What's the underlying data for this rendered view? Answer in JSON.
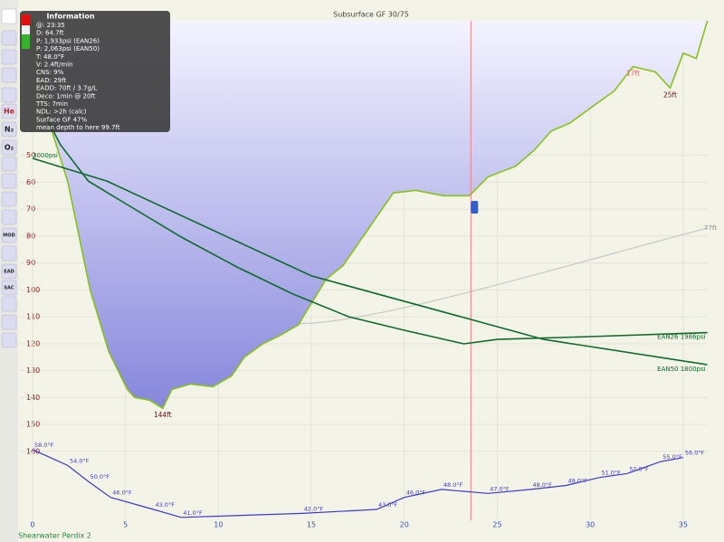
{
  "chart_data": {
    "type": "line",
    "title": "Subsurface GF 30/75",
    "xlim": [
      -0.68,
      36.32
    ],
    "ylim": [
      0,
      189
    ],
    "xticks": [
      0,
      5,
      10,
      15,
      20,
      25,
      30,
      35
    ],
    "yticks": [
      50,
      60,
      70,
      80,
      90,
      100,
      110,
      120,
      130,
      140,
      150,
      160
    ],
    "grid": true,
    "cursor_time": 23.58,
    "profile": {
      "color": "#86c21a",
      "x": [
        0,
        0.5,
        1,
        1.9,
        3.1,
        4.1,
        5.1,
        5.5,
        6.3,
        7,
        7.5,
        8.5,
        9.7,
        10.7,
        11.4,
        12.4,
        13.3,
        14.3,
        15,
        15.8,
        16.7,
        17.7,
        18.7,
        19.4,
        20.6,
        22.1,
        23.5,
        24.5,
        26,
        27,
        27.9,
        28.9,
        29.9,
        31.3,
        32.3,
        33.5,
        34.3,
        35,
        35.7,
        36.3
      ],
      "values": [
        0,
        20,
        40,
        60,
        100,
        123,
        137,
        140,
        141,
        144,
        137,
        135,
        136,
        132,
        125,
        120,
        117,
        113,
        105,
        96,
        91,
        81,
        71,
        64,
        63,
        65,
        65,
        58,
        54,
        48,
        41,
        38,
        33,
        26,
        17,
        19,
        25,
        12,
        14,
        0
      ]
    },
    "annotations": [
      {
        "text": "144ft",
        "x": 7,
        "y": 144,
        "color": "#6b1010"
      },
      {
        "text": "17ft",
        "x": 32.3,
        "y": 17,
        "color": "#e06060"
      },
      {
        "text": "25ft",
        "x": 34.3,
        "y": 25,
        "color": "#6b1010"
      }
    ],
    "mod_label": "77ft",
    "pressure": {
      "plim": [
        3800,
        842
      ],
      "start_label": "3000psi",
      "color": "#0d6b2e",
      "series": [
        {
          "label": "EAN26  1986psi",
          "x": [
            0.5,
            1.5,
            3,
            5,
            8,
            11,
            14,
            17,
            20,
            23.2,
            25,
            30,
            36.3
          ],
          "values": [
            3289,
            3079,
            2868,
            2737,
            2542,
            2368,
            2211,
            2079,
            2000,
            1921,
            1947,
            1963,
            1986
          ]
        },
        {
          "label": "EAN50  1800psi",
          "x": [
            0,
            4,
            15,
            27.5,
            36.3
          ],
          "values": [
            3000,
            2868,
            2316,
            1947,
            1800
          ]
        }
      ]
    },
    "temperature": {
      "tlim": [
        165.5,
        38
      ],
      "color": "#3a3ad0",
      "x": [
        0,
        1.9,
        3,
        4.2,
        6.5,
        8,
        14.5,
        18.5,
        20,
        22,
        24.5,
        26.8,
        28.7,
        30.5,
        32,
        33.8,
        35
      ],
      "values": [
        58,
        54,
        50,
        46,
        43,
        41,
        42,
        43,
        46,
        48,
        47,
        48,
        49,
        51,
        52,
        55,
        56
      ],
      "value_labels": [
        "58.0°F",
        "54.0°F",
        "50.0°F",
        "46.0°F",
        "43.0°F",
        "41.0°F",
        "42.0°F",
        "43.0°F",
        "46.0°F",
        "48.0°F",
        "47.0°F",
        "48.0°F",
        "49.0°F",
        "51.0°F",
        "52.0°F",
        "55.0°F",
        "56.0°F"
      ]
    }
  },
  "info": {
    "title": "Information",
    "lines": [
      "@: 23:35",
      "D: 64.7ft",
      "P: 1,933psi (EAN26)",
      "P: 2,063psi (EAN50)",
      "T: 48.0°F",
      "V: 2.4ft/min",
      "CNS: 9%",
      "EAD: 29ft",
      "EADD: 70ft / 3.7g/L",
      "Deco: 1min @ 20ft",
      "TTS: 7min",
      "NDL: >2h (calc)",
      "Surface GF 47%",
      "mean depth to here 99.7ft"
    ]
  },
  "toolbar": [
    "He",
    "N₂",
    "O₂",
    "MOD",
    "EAD",
    "SAC"
  ],
  "footer": "Shearwater Perdix 2"
}
